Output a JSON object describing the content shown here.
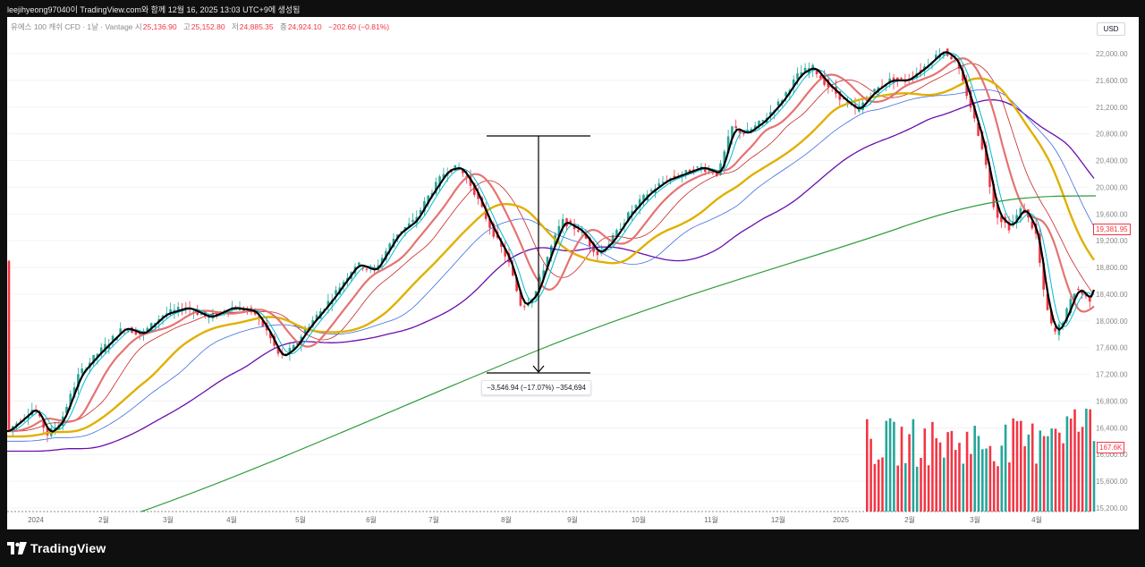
{
  "credit": "leejihyeong97040이 TradingView.com와 함께 12월 16, 2025 13:03 UTC+9에 생성됨",
  "legend": {
    "symbol": "유에스 100 캐쉬 CFD · 1날 · Vantage",
    "open_label": "시",
    "open": "25,136.90",
    "high_label": "고",
    "high": "25,152.80",
    "low_label": "저",
    "low": "24,885.35",
    "close_label": "종",
    "close": "24,924.10",
    "change": "−202.60 (−0.81%)"
  },
  "currency": "USD",
  "current_price_tag": "19,381.95",
  "volume_tag": "167.6K",
  "measure_label": "−3,546.94 (−17.07%) −354,694",
  "brand": "TradingView",
  "colors": {
    "up": "#26a69a",
    "down": "#f23645",
    "ma_fast": "#000000",
    "ma_cyan": "#00bcd4",
    "ma_pink": "#e57373",
    "ma_red_thin": "#c62828",
    "ma_yellow": "#e0b000",
    "ma_blue": "#3f6ee0",
    "ma_purple": "#6a0dad",
    "ma_green": "#2e9d3a"
  },
  "chart_data": {
    "type": "line",
    "y_ticks": [
      "22,000.00",
      "21,600.00",
      "21,200.00",
      "20,800.00",
      "20,400.00",
      "20,000.00",
      "19,600.00",
      "19,200.00",
      "18,800.00",
      "18,400.00",
      "18,000.00",
      "17,600.00",
      "17,200.00",
      "16,800.00",
      "16,400.00",
      "16,000.00",
      "15,600.00",
      "15,200.00"
    ],
    "x_ticks": [
      "2024",
      "2월",
      "3월",
      "4월",
      "5월",
      "6월",
      "7월",
      "8월",
      "9월",
      "10월",
      "11월",
      "12월",
      "2025",
      "2월",
      "3월",
      "4월"
    ],
    "ylim": [
      15200,
      22400
    ],
    "series": [
      {
        "x": [
          "2024-01",
          "2024-02",
          "2024-03",
          "2024-04",
          "2024-05",
          "2024-06",
          "2024-07",
          "2024-08",
          "2024-09",
          "2024-10",
          "2024-11",
          "2024-12",
          "2025-01",
          "2025-02",
          "2025-03",
          "2025-04"
        ],
        "values": [
          16400,
          17400,
          17900,
          18100,
          17700,
          19000,
          20100,
          18100,
          19200,
          20100,
          20600,
          21300,
          21200,
          21800,
          19500,
          18700
        ]
      }
    ]
  }
}
